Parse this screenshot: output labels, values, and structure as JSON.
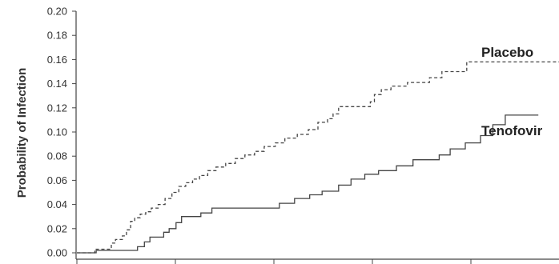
{
  "chart_data": {
    "type": "line",
    "title": "",
    "xlabel": "",
    "ylabel": "Probability of Infection",
    "ylim": [
      0,
      0.2
    ],
    "xlim": [
      0,
      35
    ],
    "y_ticks": [
      "0.00",
      "0.02",
      "0.04",
      "0.06",
      "0.08",
      "0.10",
      "0.12",
      "0.14",
      "0.16",
      "0.18",
      "0.20"
    ],
    "x_tick_count": 5,
    "step": true,
    "grid": false,
    "legend": "inline labels at right",
    "series": [
      {
        "name": "Placebo",
        "line_style": "dashed",
        "color": "#444444",
        "points": [
          [
            0.0,
            0.0
          ],
          [
            1.2,
            0.0
          ],
          [
            1.3,
            0.003
          ],
          [
            2.4,
            0.003
          ],
          [
            2.5,
            0.008
          ],
          [
            2.8,
            0.011
          ],
          [
            3.3,
            0.014
          ],
          [
            3.6,
            0.019
          ],
          [
            3.9,
            0.026
          ],
          [
            4.2,
            0.029
          ],
          [
            4.6,
            0.032
          ],
          [
            5.0,
            0.034
          ],
          [
            5.4,
            0.037
          ],
          [
            5.9,
            0.04
          ],
          [
            6.4,
            0.045
          ],
          [
            6.9,
            0.05
          ],
          [
            7.4,
            0.055
          ],
          [
            7.9,
            0.058
          ],
          [
            8.4,
            0.061
          ],
          [
            8.9,
            0.064
          ],
          [
            9.5,
            0.068
          ],
          [
            10.1,
            0.071
          ],
          [
            10.8,
            0.074
          ],
          [
            11.5,
            0.078
          ],
          [
            12.2,
            0.081
          ],
          [
            12.9,
            0.084
          ],
          [
            13.6,
            0.088
          ],
          [
            14.4,
            0.091
          ],
          [
            15.1,
            0.095
          ],
          [
            16.0,
            0.098
          ],
          [
            16.8,
            0.102
          ],
          [
            17.5,
            0.108
          ],
          [
            18.2,
            0.111
          ],
          [
            18.6,
            0.115
          ],
          [
            19.0,
            0.121
          ],
          [
            21.1,
            0.121
          ],
          [
            21.3,
            0.125
          ],
          [
            21.6,
            0.131
          ],
          [
            22.1,
            0.135
          ],
          [
            22.8,
            0.138
          ],
          [
            24.0,
            0.141
          ],
          [
            25.6,
            0.145
          ],
          [
            26.5,
            0.15
          ],
          [
            28.1,
            0.15
          ],
          [
            28.3,
            0.158
          ],
          [
            35.0,
            0.158
          ]
        ]
      },
      {
        "name": "Tenofovir",
        "line_style": "solid",
        "color": "#444444",
        "points": [
          [
            0.0,
            0.0
          ],
          [
            1.3,
            0.0
          ],
          [
            1.4,
            0.002
          ],
          [
            4.2,
            0.002
          ],
          [
            4.4,
            0.005
          ],
          [
            4.9,
            0.009
          ],
          [
            5.3,
            0.013
          ],
          [
            6.3,
            0.017
          ],
          [
            6.7,
            0.02
          ],
          [
            7.2,
            0.025
          ],
          [
            7.6,
            0.03
          ],
          [
            8.9,
            0.03
          ],
          [
            9.0,
            0.033
          ],
          [
            9.8,
            0.037
          ],
          [
            14.5,
            0.037
          ],
          [
            14.7,
            0.041
          ],
          [
            15.8,
            0.045
          ],
          [
            16.9,
            0.048
          ],
          [
            17.8,
            0.051
          ],
          [
            19.0,
            0.056
          ],
          [
            19.9,
            0.061
          ],
          [
            20.9,
            0.065
          ],
          [
            21.9,
            0.068
          ],
          [
            23.2,
            0.072
          ],
          [
            24.4,
            0.077
          ],
          [
            26.1,
            0.077
          ],
          [
            26.3,
            0.081
          ],
          [
            27.1,
            0.086
          ],
          [
            28.2,
            0.091
          ],
          [
            29.3,
            0.097
          ],
          [
            30.2,
            0.106
          ],
          [
            31.0,
            0.106
          ],
          [
            31.1,
            0.114
          ],
          [
            33.5,
            0.114
          ]
        ]
      }
    ]
  }
}
